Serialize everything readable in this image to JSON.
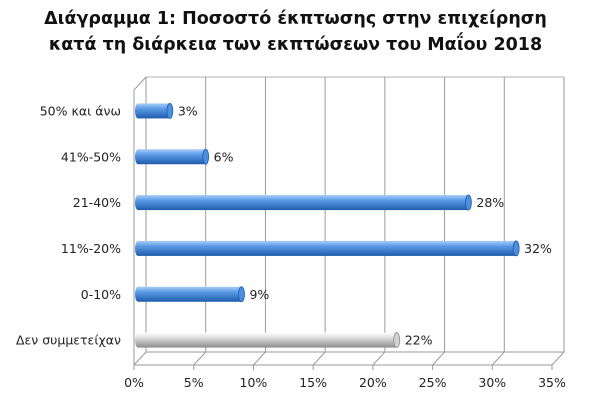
{
  "chart_data": {
    "type": "bar",
    "orientation": "horizontal",
    "title": [
      "Διάγραμμα 1: Ποσοστό έκπτωσης στην επιχείρηση",
      "κατά τη διάρκεια των εκπτώσεων του Μαΐου 2018"
    ],
    "categories": [
      "50% και άνω",
      "41%-50%",
      "21-40%",
      "11%-20%",
      "0-10%",
      "Δεν συμμετείχαν"
    ],
    "values": [
      3,
      6,
      28,
      32,
      9,
      22
    ],
    "data_labels": [
      "3%",
      "6%",
      "28%",
      "32%",
      "9%",
      "22%"
    ],
    "xlim": [
      0,
      35
    ],
    "x_ticks": [
      "0%",
      "5%",
      "10%",
      "15%",
      "20%",
      "25%",
      "30%",
      "35%"
    ],
    "grid": true,
    "legend": "none",
    "colors": {
      "bar_blue_light": "#9cc4f2",
      "bar_blue": "#4a8fe0",
      "bar_blue_dark": "#1f5cad",
      "bar_gray_light": "#f4f4f4",
      "bar_gray": "#d2d2d2",
      "bar_gray_dark": "#8c8c8c",
      "grid": "#9a9a9a"
    }
  }
}
